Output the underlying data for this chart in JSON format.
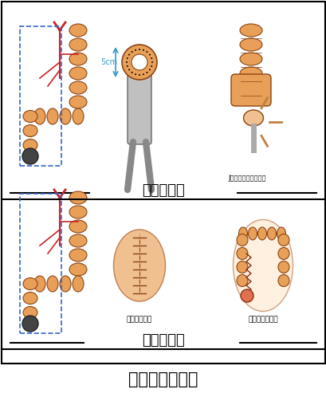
{
  "title": "直脳がんの手術",
  "section1_label": "直脳切除術",
  "section2_label": "直脳切断術",
  "label_j": "J型結腸囊肣門管吼合",
  "label_kainage": "会陰刈の閉鎖",
  "label_komonzousetsu": "人工肣門造設術",
  "label_5cm": "5cm",
  "bg_color": "#ffffff",
  "border_color": "#000000",
  "text_color": "#000000",
  "orange": "#E8A058",
  "red": "#CC2222",
  "blue_dash": "#3366CC",
  "gray": "#888888",
  "skin_color": "#F0C090",
  "title_fontsize": 15,
  "section_fontsize": 13,
  "label_fontsize": 7
}
